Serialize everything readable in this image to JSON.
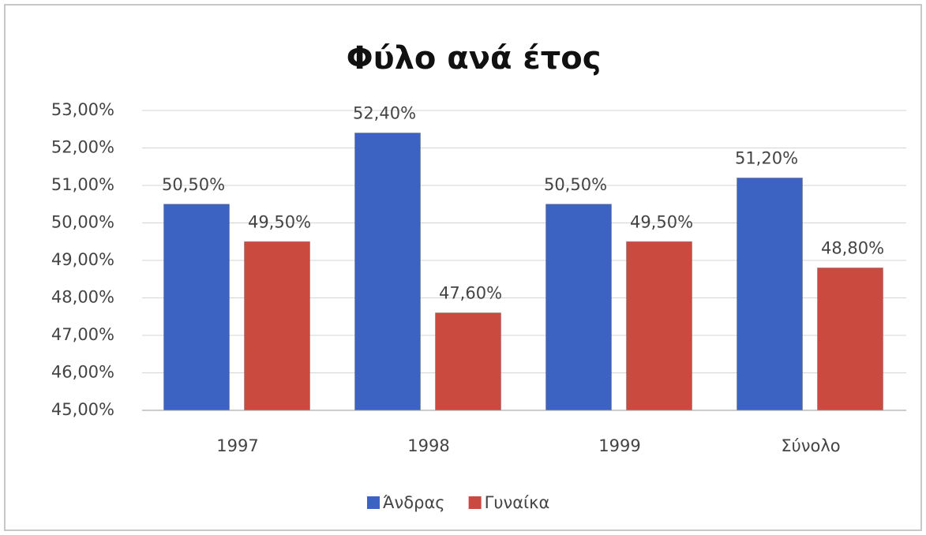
{
  "chart_data": {
    "type": "bar",
    "title": "Φύλο ανά έτος",
    "categories": [
      "1997",
      "1998",
      "1999",
      "Σύνολο"
    ],
    "series": [
      {
        "name": "Άνδρας",
        "color": "#3d63c2",
        "values": [
          50.5,
          52.4,
          50.5,
          51.2
        ],
        "value_labels": [
          "50,50%",
          "52,40%",
          "50,50%",
          "51,20%"
        ]
      },
      {
        "name": "Γυναίκα",
        "color": "#cb4a3f",
        "values": [
          49.5,
          47.6,
          49.5,
          48.8
        ],
        "value_labels": [
          "49,50%",
          "47,60%",
          "49,50%",
          "48,80%"
        ]
      }
    ],
    "ylim": [
      45,
      53
    ],
    "yticks": [
      {
        "value": 45,
        "label": "45,00%"
      },
      {
        "value": 46,
        "label": "46,00%"
      },
      {
        "value": 47,
        "label": "47,00%"
      },
      {
        "value": 48,
        "label": "48,00%"
      },
      {
        "value": 49,
        "label": "49,00%"
      },
      {
        "value": 50,
        "label": "50,00%"
      },
      {
        "value": 51,
        "label": "51,00%"
      },
      {
        "value": 52,
        "label": "52,00%"
      },
      {
        "value": 53,
        "label": "53,00%"
      }
    ],
    "grid": true,
    "legend": "bottom"
  }
}
